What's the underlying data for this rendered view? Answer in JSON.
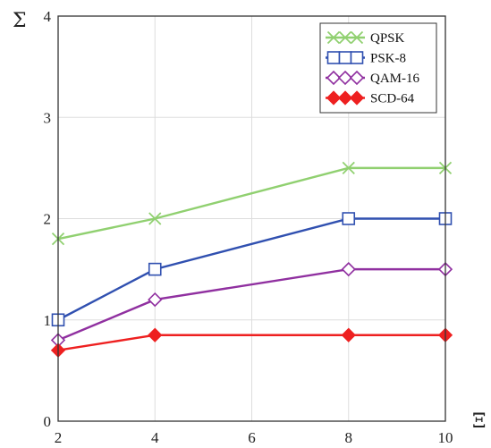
{
  "chart_data": {
    "type": "line",
    "xlabel": "Ξ",
    "ylabel": "Σ",
    "xlim": [
      2,
      10
    ],
    "ylim": [
      0,
      4
    ],
    "xticks": [
      2,
      4,
      6,
      8,
      10
    ],
    "yticks": [
      0,
      1,
      2,
      3,
      4
    ],
    "grid": true,
    "legend_position": "top-right",
    "series": [
      {
        "name": "QPSK",
        "color": "#90d070",
        "marker": "x-cross",
        "x": [
          2,
          4,
          8,
          10
        ],
        "y": [
          1.8,
          2.0,
          2.5,
          2.5
        ]
      },
      {
        "name": "PSK-8",
        "color": "#3050b0",
        "marker": "square-open",
        "x": [
          2,
          4,
          8,
          10
        ],
        "y": [
          1.0,
          1.5,
          2.0,
          2.0
        ]
      },
      {
        "name": "QAM-16",
        "color": "#9030a0",
        "marker": "diamond-open",
        "x": [
          2,
          4,
          8,
          10
        ],
        "y": [
          0.8,
          1.2,
          1.5,
          1.5
        ]
      },
      {
        "name": "SCD-64",
        "color": "#ee2020",
        "marker": "diamond-filled",
        "x": [
          2,
          4,
          8,
          10
        ],
        "y": [
          0.7,
          0.85,
          0.85,
          0.85
        ]
      }
    ]
  }
}
